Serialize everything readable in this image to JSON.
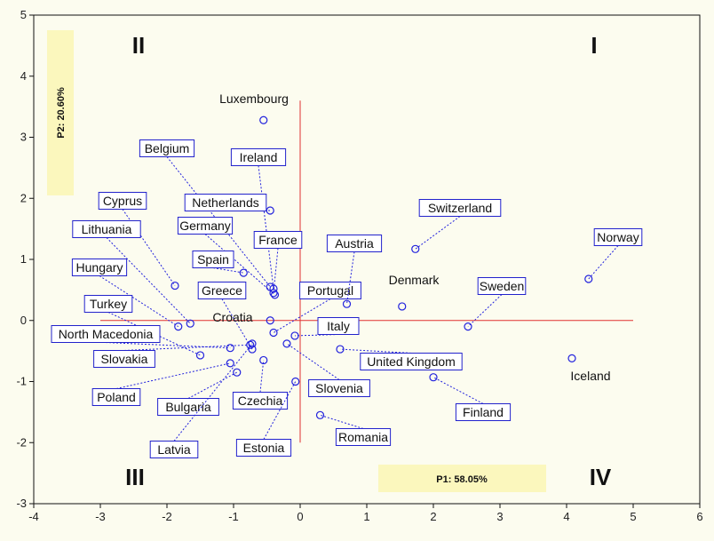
{
  "chart_data": {
    "type": "scatter",
    "xlim": [
      -4,
      6
    ],
    "ylim": [
      -3,
      5
    ],
    "x_ticks": [
      "-4",
      "-3",
      "-2",
      "-1",
      "0",
      "1",
      "2",
      "3",
      "4",
      "5",
      "6"
    ],
    "y_ticks": [
      "-3",
      "-2",
      "-1",
      "0",
      "1",
      "2",
      "3",
      "4",
      "5"
    ],
    "x_axis_caption": "P1: 58.05%",
    "y_axis_caption": "P2: 20.60%",
    "quadrants": [
      "I",
      "II",
      "III",
      "IV"
    ],
    "reference_lines": {
      "x": 0,
      "y": 0,
      "color": "#e03030"
    },
    "marker_color": "#2222dd",
    "label_box_color": "#2222cc",
    "caption_bg": "#fbf7bd",
    "points": [
      {
        "name": "Luxembourg",
        "x": -0.55,
        "y": 3.28,
        "boxed": false
      },
      {
        "name": "Belgium",
        "x": -0.45,
        "y": 0.55,
        "boxed": true
      },
      {
        "name": "Ireland",
        "x": -0.4,
        "y": 0.52,
        "boxed": true
      },
      {
        "name": "Netherlands",
        "x": -0.45,
        "y": 1.8,
        "boxed": true
      },
      {
        "name": "Germany",
        "x": -0.38,
        "y": 0.42,
        "boxed": true
      },
      {
        "name": "France",
        "x": -0.4,
        "y": 0.45,
        "boxed": true
      },
      {
        "name": "Cyprus",
        "x": -1.88,
        "y": 0.57,
        "boxed": true
      },
      {
        "name": "Lithuania",
        "x": -1.65,
        "y": -0.05,
        "boxed": true
      },
      {
        "name": "Hungary",
        "x": -1.83,
        "y": -0.1,
        "boxed": true
      },
      {
        "name": "Turkey",
        "x": -1.5,
        "y": -0.57,
        "boxed": true
      },
      {
        "name": "North Macedonia",
        "x": -1.05,
        "y": -0.45,
        "boxed": true
      },
      {
        "name": "Slovakia",
        "x": -0.75,
        "y": -0.4,
        "boxed": true
      },
      {
        "name": "Poland",
        "x": -1.05,
        "y": -0.7,
        "boxed": true
      },
      {
        "name": "Bulgaria",
        "x": -0.95,
        "y": -0.85,
        "boxed": true
      },
      {
        "name": "Latvia",
        "x": -0.72,
        "y": -0.38,
        "boxed": true
      },
      {
        "name": "Spain",
        "x": -0.85,
        "y": 0.78,
        "boxed": true
      },
      {
        "name": "Greece",
        "x": -0.72,
        "y": -0.47,
        "boxed": true
      },
      {
        "name": "Croatia",
        "x": -0.45,
        "y": 0.0,
        "boxed": false
      },
      {
        "name": "Czechia",
        "x": -0.55,
        "y": -0.65,
        "boxed": true
      },
      {
        "name": "Estonia",
        "x": -0.07,
        "y": -1.0,
        "boxed": true
      },
      {
        "name": "Portugal",
        "x": -0.4,
        "y": -0.2,
        "boxed": true
      },
      {
        "name": "Italy",
        "x": -0.08,
        "y": -0.25,
        "boxed": true
      },
      {
        "name": "Slovenia",
        "x": -0.2,
        "y": -0.38,
        "boxed": true
      },
      {
        "name": "Romania",
        "x": 0.3,
        "y": -1.55,
        "boxed": true
      },
      {
        "name": "Austria",
        "x": 0.7,
        "y": 0.27,
        "boxed": true
      },
      {
        "name": "United Kingdom",
        "x": 0.6,
        "y": -0.47,
        "boxed": true
      },
      {
        "name": "Denmark",
        "x": 1.53,
        "y": 0.23,
        "boxed": false
      },
      {
        "name": "Switzerland",
        "x": 1.73,
        "y": 1.17,
        "boxed": true
      },
      {
        "name": "Finland",
        "x": 2.0,
        "y": -0.93,
        "boxed": true
      },
      {
        "name": "Sweden",
        "x": 2.52,
        "y": -0.1,
        "boxed": true
      },
      {
        "name": "Norway",
        "x": 4.33,
        "y": 0.68,
        "boxed": true
      },
      {
        "name": "Iceland",
        "x": 4.08,
        "y": -0.62,
        "boxed": false
      }
    ]
  }
}
